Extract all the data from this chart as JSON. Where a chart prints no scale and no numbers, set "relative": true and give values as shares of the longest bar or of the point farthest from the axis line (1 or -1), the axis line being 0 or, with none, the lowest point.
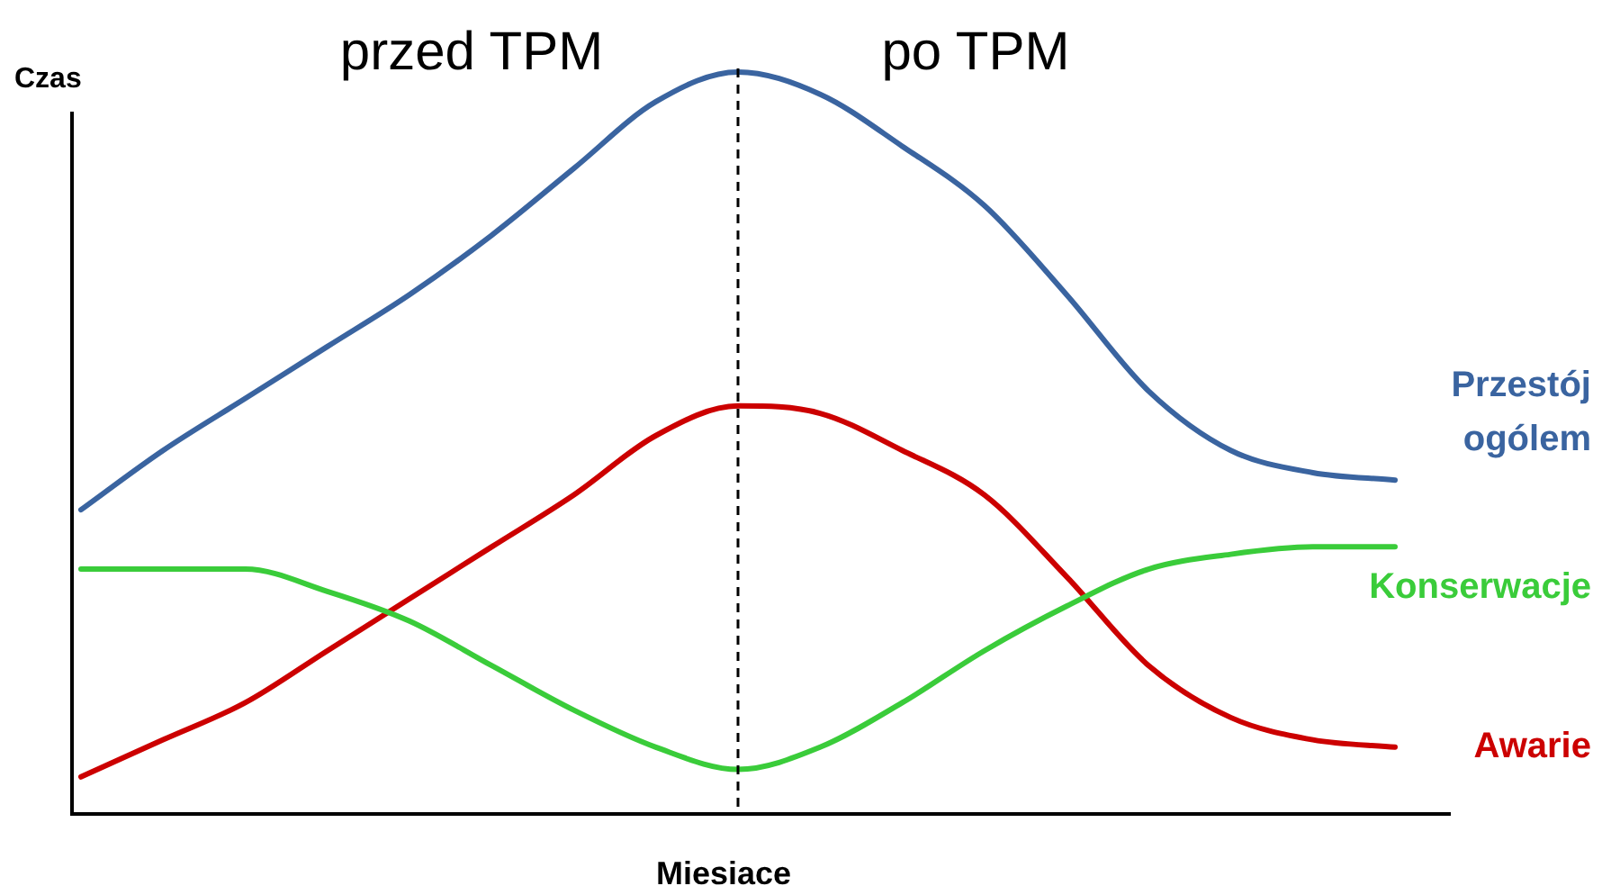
{
  "chart_data": {
    "type": "line",
    "relative": true,
    "xlabel": "Miesiace",
    "ylabel": "Czas",
    "annotations": [
      "przed TPM",
      "po TPM"
    ],
    "categories": [
      null,
      null,
      null,
      null,
      null,
      null,
      null,
      null,
      null,
      null,
      null,
      null,
      null,
      null,
      null,
      null,
      null
    ],
    "series": [
      {
        "name": "Przestój ogólem",
        "color": "#3a64a0",
        "values": [
          0.41,
          0.49,
          0.56,
          0.63,
          0.7,
          0.78,
          0.87,
          0.96,
          1.0,
          0.97,
          0.9,
          0.82,
          0.7,
          0.57,
          0.49,
          0.46,
          0.45
        ]
      },
      {
        "name": "Konserwacje",
        "color": "#3acc3a",
        "values": [
          0.33,
          0.33,
          0.33,
          0.3,
          0.26,
          0.2,
          0.14,
          0.09,
          0.06,
          0.09,
          0.15,
          0.22,
          0.28,
          0.33,
          0.35,
          0.36,
          0.36
        ]
      },
      {
        "name": "Awarie",
        "color": "#cc0000",
        "values": [
          0.05,
          0.1,
          0.15,
          0.22,
          0.29,
          0.36,
          0.43,
          0.51,
          0.55,
          0.54,
          0.49,
          0.43,
          0.32,
          0.2,
          0.13,
          0.1,
          0.09
        ]
      }
    ],
    "grid": false,
    "legend": false,
    "marker": "none",
    "line_style": "solid",
    "tick_labels": false
  }
}
